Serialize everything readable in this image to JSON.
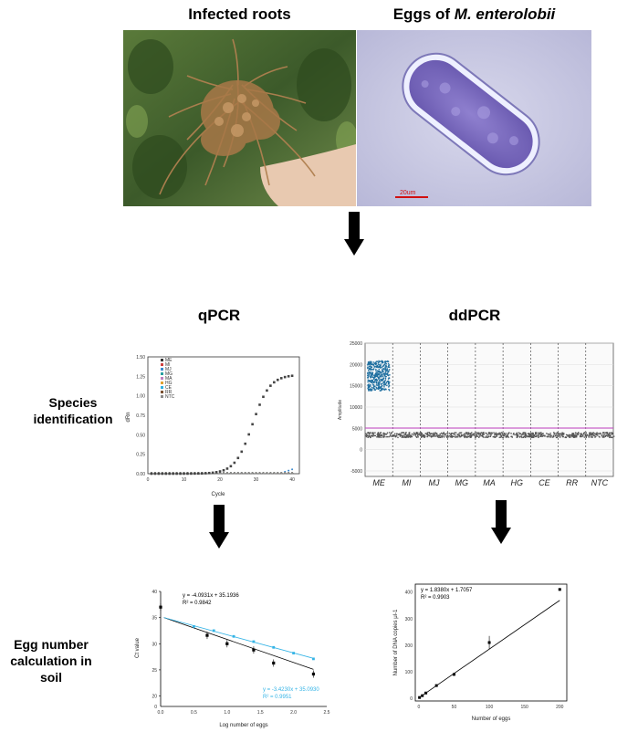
{
  "photos": {
    "roots_title": "Infected roots",
    "eggs_title_prefix": "Eggs of ",
    "eggs_title_italic": "M. enterolobii",
    "scale_bar": "20um"
  },
  "sections": {
    "qpcr": "qPCR",
    "ddpcr": "ddPCR"
  },
  "row_labels": {
    "species_line1": "Species",
    "species_line2": "identification",
    "egg_line1": "Egg number",
    "egg_line2": "calculation in soil"
  },
  "qpcr_amp": {
    "xlabel": "Cycle",
    "ylabel": "dRn",
    "y_ticks": [
      "0.00",
      "0.25",
      "0.50",
      "0.75",
      "1.00",
      "1.25",
      "1.50"
    ],
    "x_ticks": [
      "0",
      "10",
      "20",
      "30",
      "40"
    ],
    "legend": [
      "ME",
      "MI",
      "MJ",
      "MG",
      "MA",
      "HG",
      "CE",
      "RR",
      "NTC"
    ]
  },
  "ddpcr": {
    "ylabel": "Amplitude",
    "y_ticks": [
      "25000",
      "20000",
      "15000",
      "10000",
      "5000",
      "0",
      "-5000"
    ],
    "wells": [
      "ME",
      "MI",
      "MJ",
      "MG",
      "MA",
      "HG",
      "CE",
      "RR",
      "NTC"
    ]
  },
  "std_curve": {
    "xlabel": "Log number of eggs",
    "ylabel": "Ct value",
    "x_ticks": [
      "0.0",
      "0.5",
      "1.0",
      "1.5",
      "2.0",
      "2.5"
    ],
    "y_ticks": [
      "40",
      "35",
      "30",
      "25",
      "20",
      "0"
    ],
    "eq1": "y = -4.0931x + 35.1936",
    "r2_1": "R² = 0.9842",
    "eq2": "y = -3.4230x + 35.0930",
    "r2_2": "R² = 0.9951"
  },
  "dd_curve": {
    "xlabel": "Number of eggs",
    "ylabel": "Number of DNA copies μl-1",
    "x_ticks": [
      "0",
      "50",
      "100",
      "150",
      "200"
    ],
    "y_ticks": [
      "0",
      "100",
      "200",
      "300",
      "400"
    ],
    "eq": "y = 1.8380x + 1.7057",
    "r2": "R² = 0.9903"
  },
  "colors": {
    "accent_blue": "#1e86c0",
    "cyan": "#35b4e6",
    "magenta": "#c040c0",
    "scale_red": "#d01010",
    "egg_purple": "#6a5ab0"
  }
}
